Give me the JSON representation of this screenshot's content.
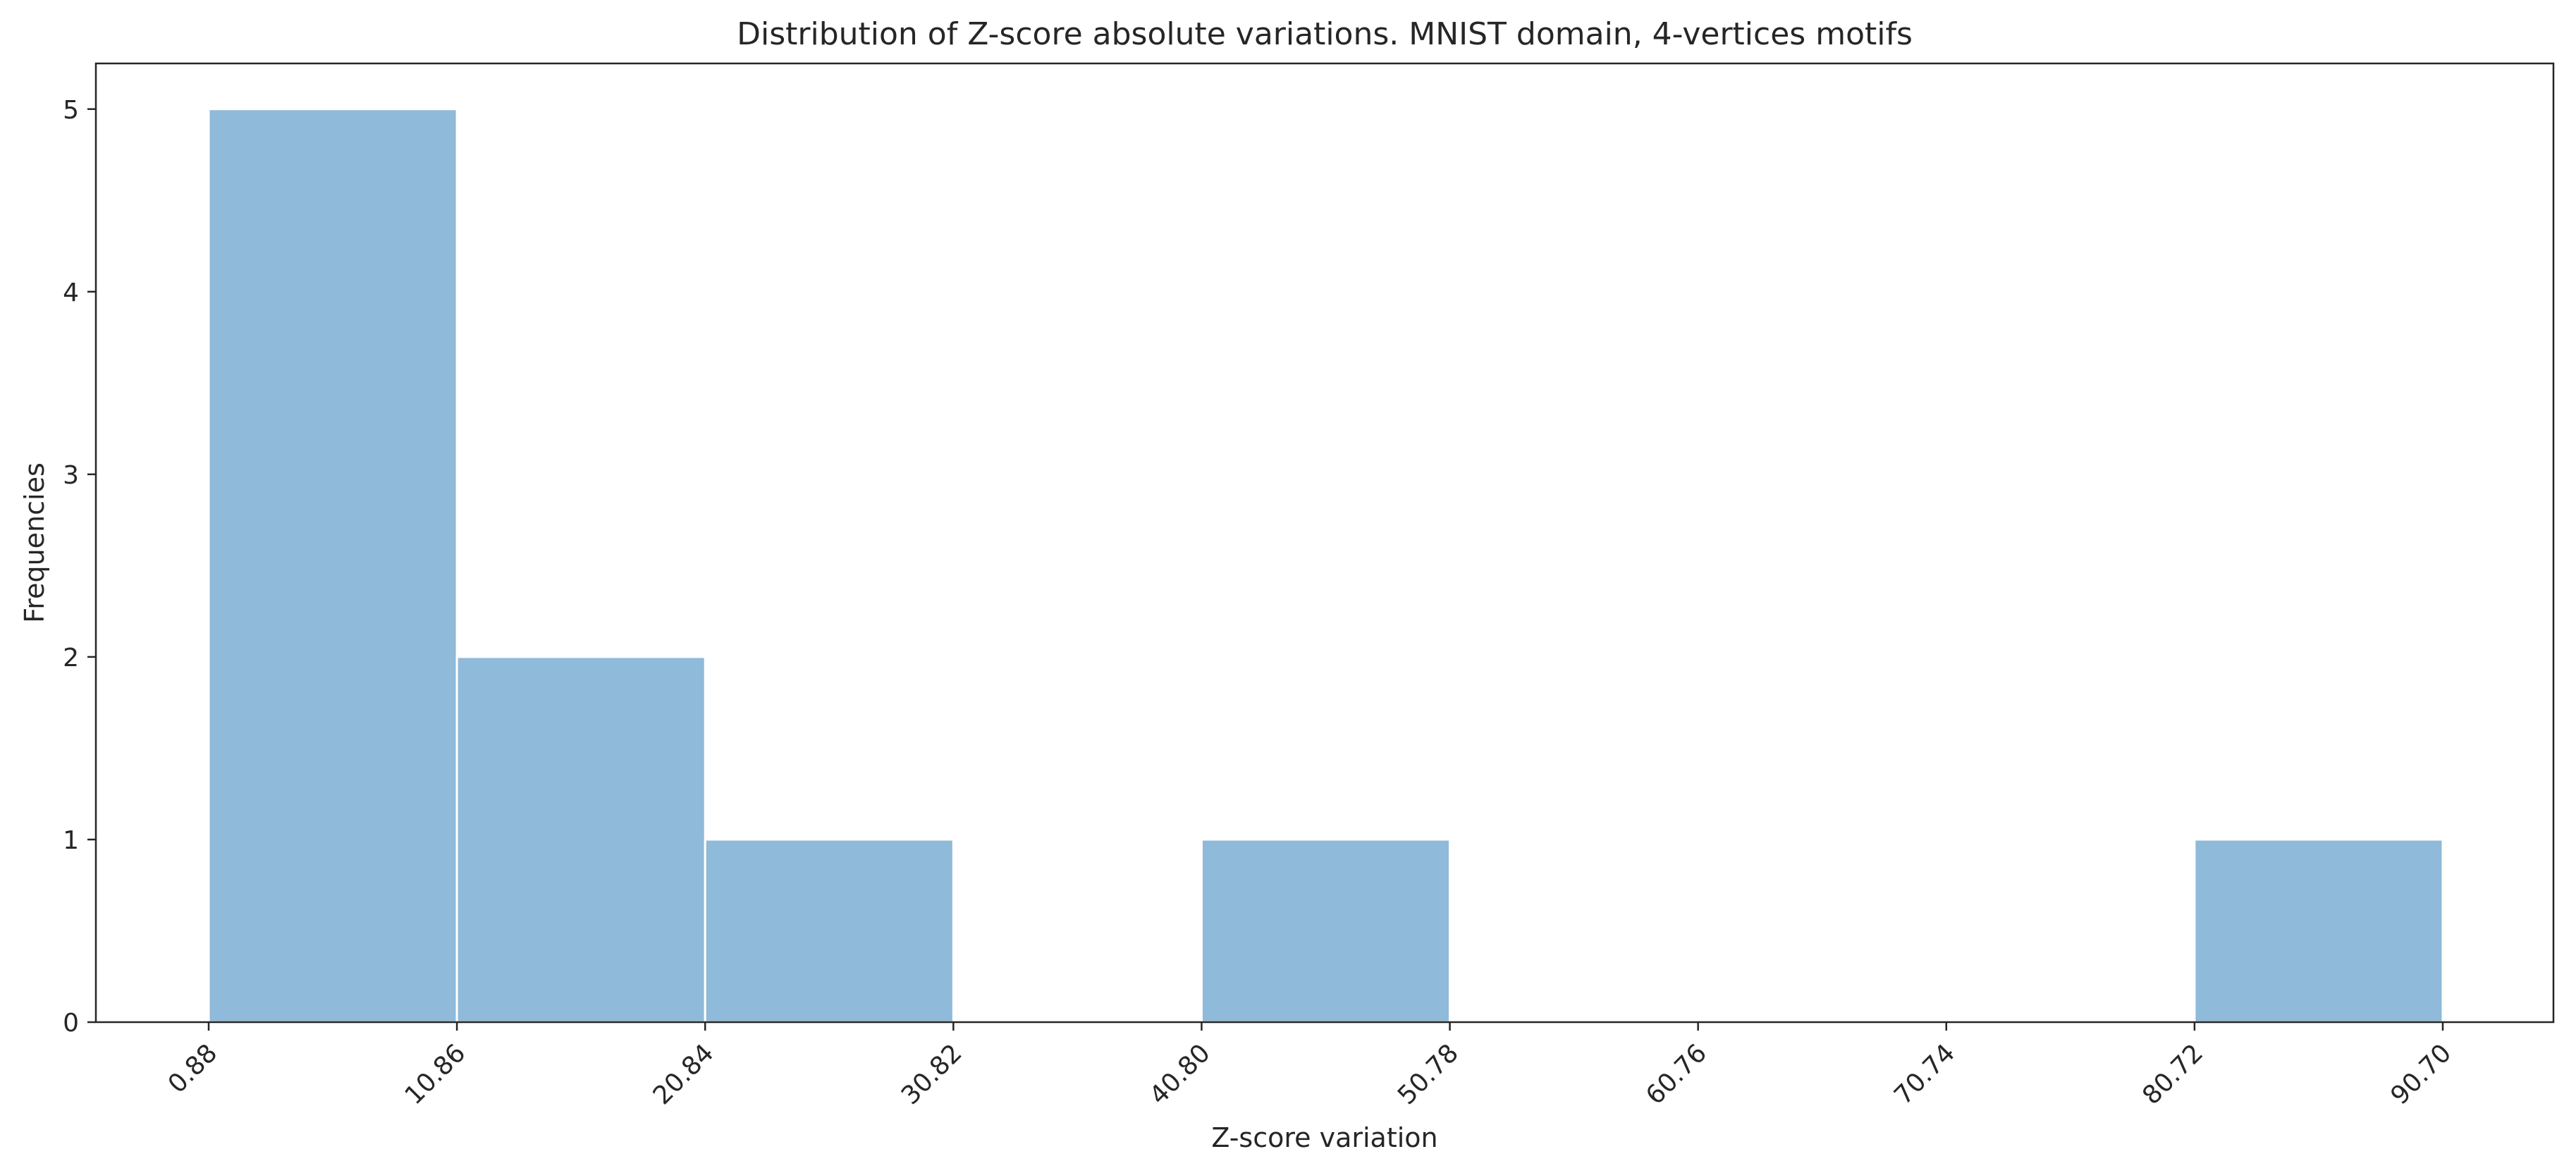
{
  "chart_data": {
    "type": "bar",
    "title": "Distribution of Z-score absolute variations. MNIST domain, 4-vertices motifs",
    "xlabel": "Z-score variation",
    "ylabel": "Frequencies",
    "bin_edges": [
      0.88,
      10.86,
      20.84,
      30.82,
      40.8,
      50.78,
      60.76,
      70.74,
      80.72,
      90.7
    ],
    "values": [
      5,
      2,
      1,
      0,
      1,
      0,
      0,
      0,
      1
    ],
    "x_tick_labels": [
      "0.88",
      "10.86",
      "20.84",
      "30.82",
      "40.80",
      "50.78",
      "60.76",
      "70.74",
      "80.72",
      "90.70"
    ],
    "y_ticks": [
      0,
      1,
      2,
      3,
      4,
      5
    ],
    "ylim": [
      0,
      5.25
    ],
    "grid": false,
    "bar_color": "#8fbad9"
  }
}
